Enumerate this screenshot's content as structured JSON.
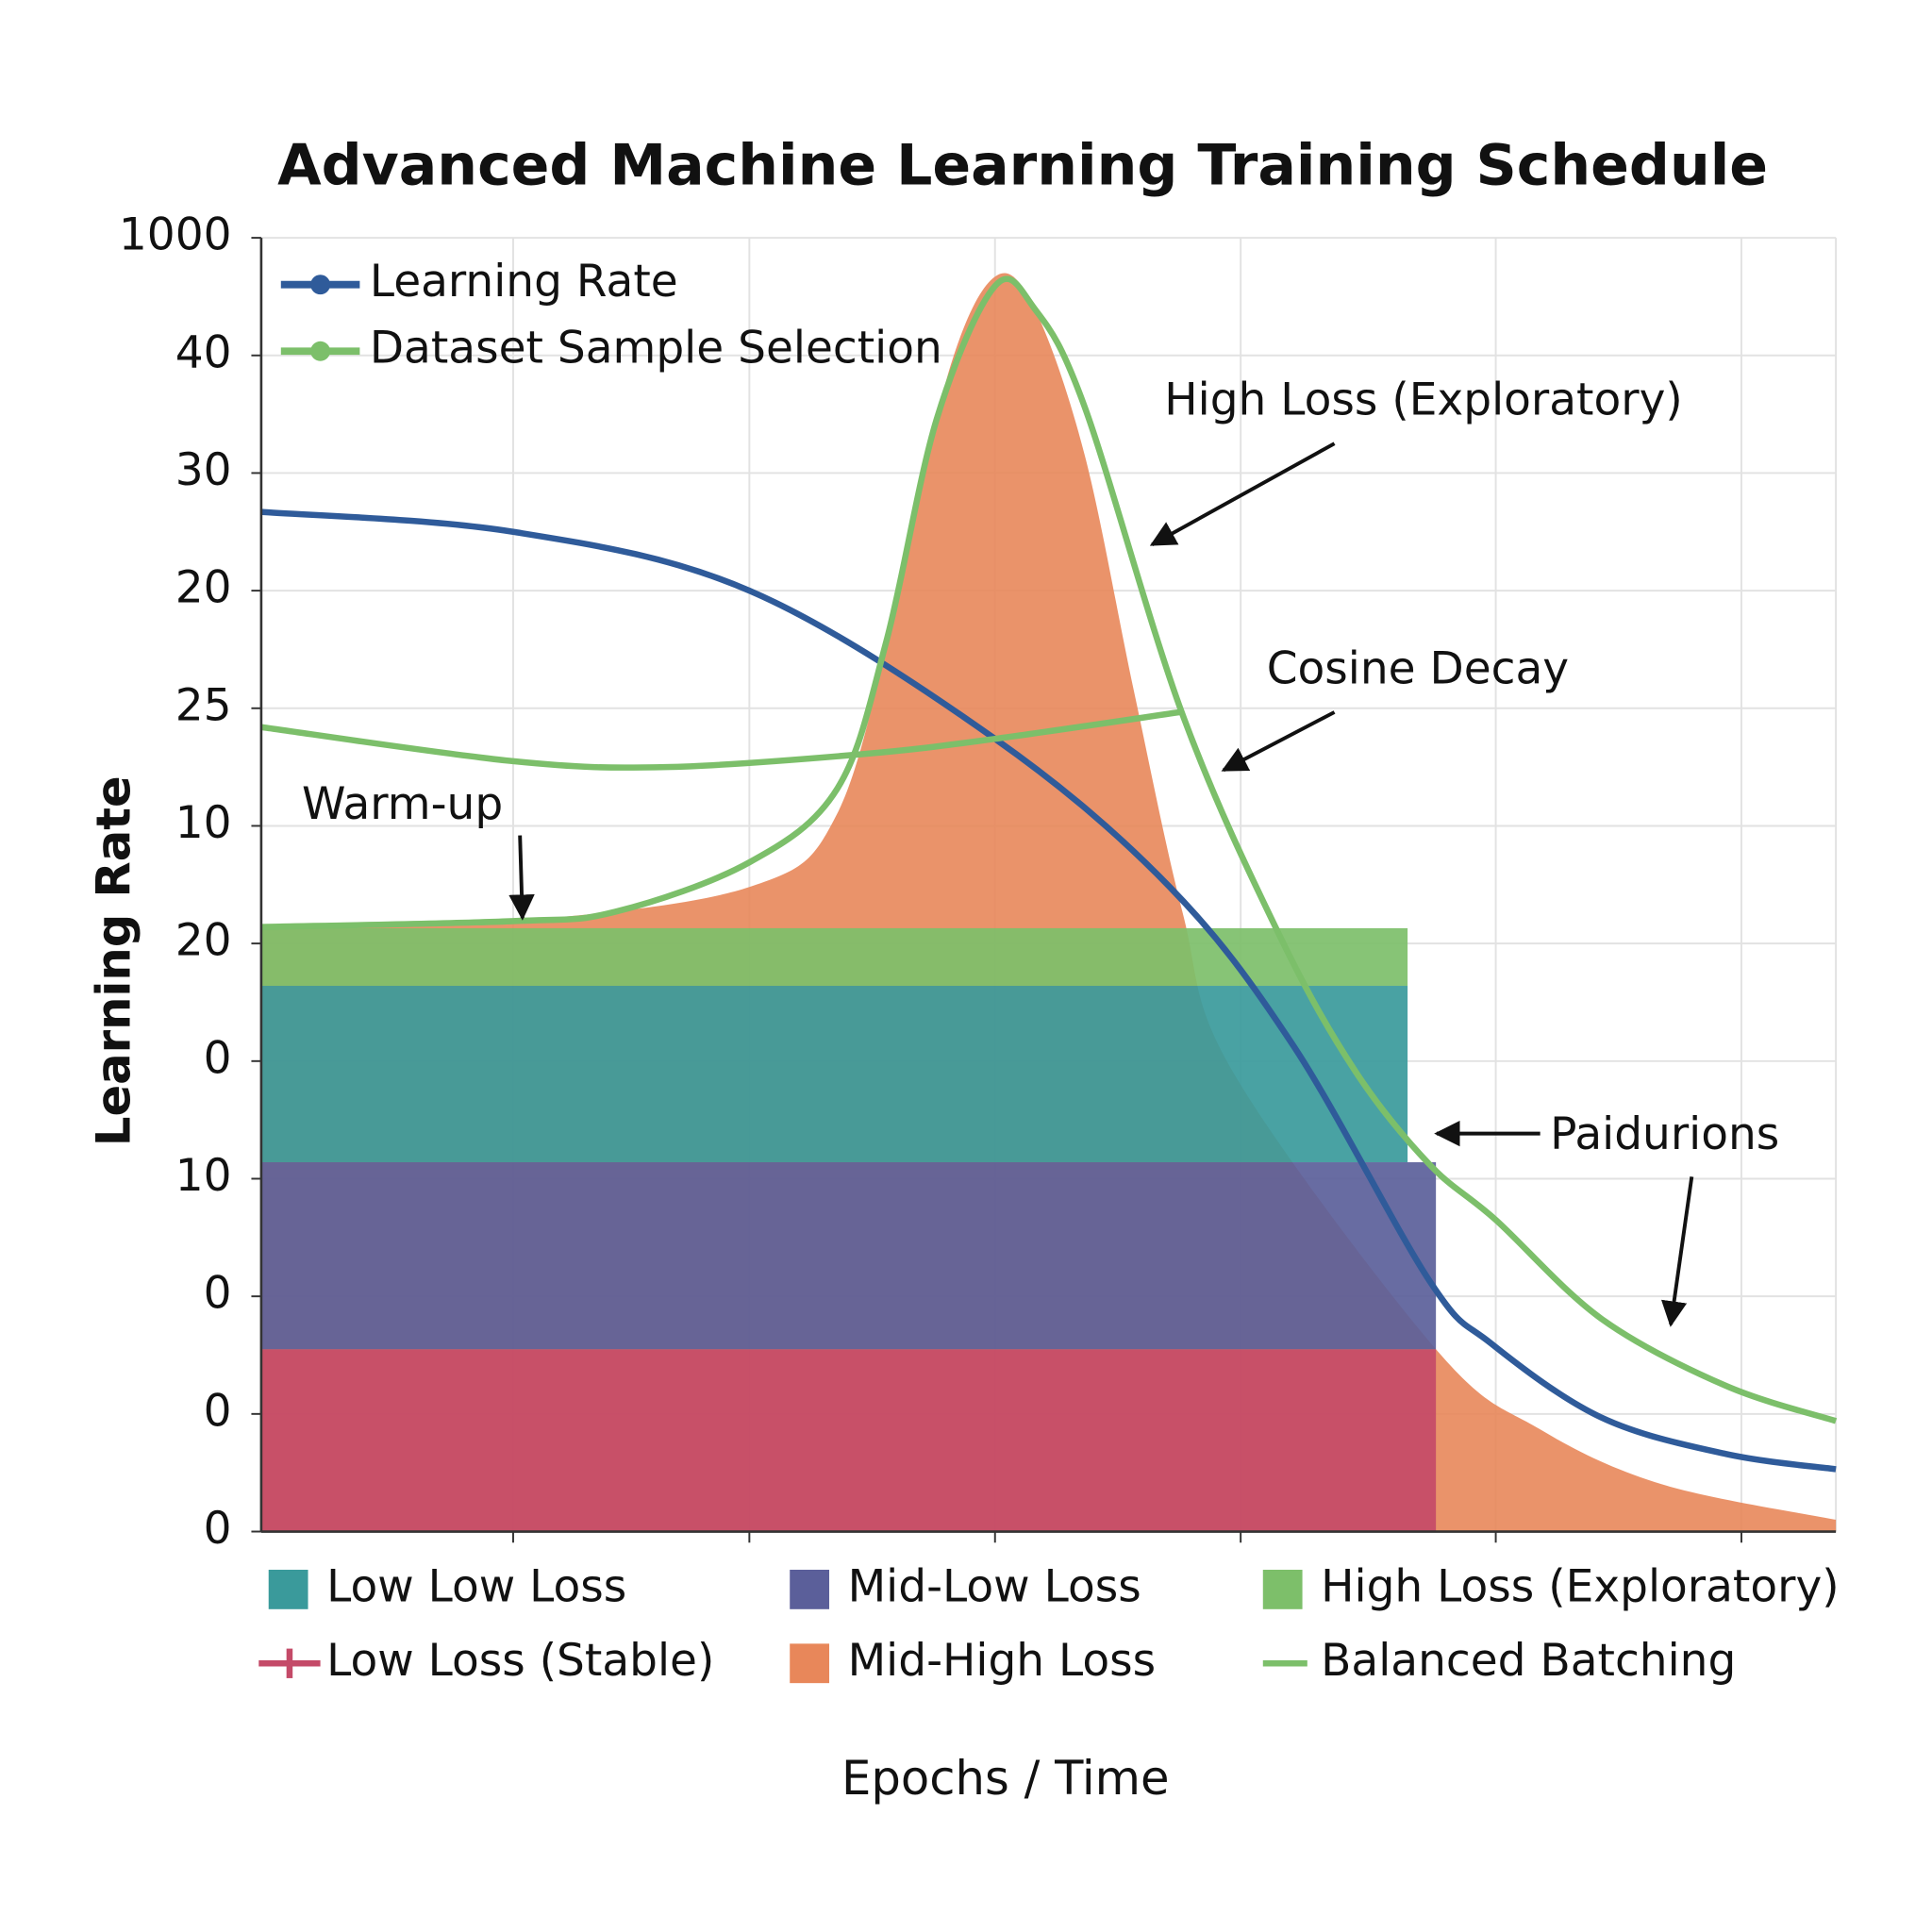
{
  "chart_data": {
    "type": "combo",
    "title": "Advanced Machine Learning Training Schedule",
    "x_label": "Epochs / Time",
    "y_label": "Learning Rate",
    "xlim": [
      0,
      10
    ],
    "ylim": [
      0,
      11
    ],
    "xticks": [
      1.6,
      3.1,
      4.66,
      6.22,
      7.84,
      9.4
    ],
    "yticks": [
      0,
      {
        "value": 1,
        "label": "0"
      },
      {
        "value": 2,
        "label": "0"
      },
      {
        "value": 3,
        "label": "10"
      },
      {
        "value": 4,
        "label": "0"
      },
      {
        "value": 5,
        "label": "20"
      },
      {
        "value": 6,
        "label": "10"
      },
      {
        "value": 7,
        "label": "25"
      },
      {
        "value": 8,
        "label": "20"
      },
      {
        "value": 9,
        "label": "30"
      },
      {
        "value": 10,
        "label": "40"
      },
      {
        "value": 11,
        "label": "1000"
      }
    ],
    "grid": true,
    "bands": [
      {
        "name": "Low Loss (Stable)",
        "color": "#c44a68",
        "value": 1.55,
        "x_end": 7.46,
        "legend_marker": "plus"
      },
      {
        "name": "Mid-Low Loss",
        "color": "#5b5f9a",
        "value": 1.59,
        "x_end": 7.46
      },
      {
        "name": "Low Low Loss",
        "color": "#3a9a9b",
        "value": 1.5,
        "x_end": 7.28
      },
      {
        "name": "High Loss (Exploratory)",
        "color": "#7dbf6a",
        "value": 0.49,
        "x_end": 7.28
      }
    ],
    "area": {
      "name": "Mid-High Loss",
      "color": "#e8875a",
      "x": [
        0,
        1.6,
        3.1,
        3.66,
        4.05,
        4.37,
        4.66,
        4.91,
        5.23,
        5.54,
        5.85,
        6.17,
        7.46,
        8.12,
        8.9,
        10
      ],
      "values": [
        5.14,
        5.19,
        5.48,
        6.11,
        7.99,
        9.88,
        10.67,
        10.4,
        9.15,
        7.16,
        5.27,
        3.91,
        1.55,
        0.87,
        0.4,
        0.1
      ]
    },
    "series": [
      {
        "name": "Learning Rate",
        "color": "#2f5b9a",
        "marker": "circle",
        "legend": "top-left",
        "x": [
          0,
          1.6,
          3.1,
          4.66,
          5.77,
          6.56,
          7.42,
          7.81,
          8.51,
          9.3,
          10
        ],
        "values": [
          8.67,
          8.5,
          8.0,
          6.74,
          5.48,
          4.12,
          2.13,
          1.6,
          0.97,
          0.66,
          0.53
        ]
      },
      {
        "name": "Dataset Sample Selection",
        "color": "#7cbf6a",
        "marker": "circle",
        "legend": "top-left",
        "x": [
          0,
          1.6,
          2.57,
          3.82,
          4.66,
          5.85
        ],
        "values": [
          6.84,
          6.55,
          6.5,
          6.61,
          6.74,
          6.97
        ]
      },
      {
        "name": "Balanced Batching",
        "color": "#7cbf6a",
        "legend": "bottom",
        "x": [
          0,
          1.6,
          2.25,
          3.1,
          3.66,
          3.97,
          4.29,
          4.66,
          4.91,
          5.23,
          5.85,
          6.47,
          6.95,
          7.42,
          7.84,
          8.51,
          9.3,
          10
        ],
        "values": [
          5.14,
          5.19,
          5.27,
          5.69,
          6.32,
          7.57,
          9.46,
          10.59,
          10.4,
          9.56,
          6.95,
          5.06,
          3.91,
          3.12,
          2.65,
          1.81,
          1.24,
          0.94
        ]
      }
    ],
    "annotations": [
      "High Loss (Exploratory)",
      "Cosine Decay",
      "Warm-up",
      "Paidurions"
    ]
  }
}
